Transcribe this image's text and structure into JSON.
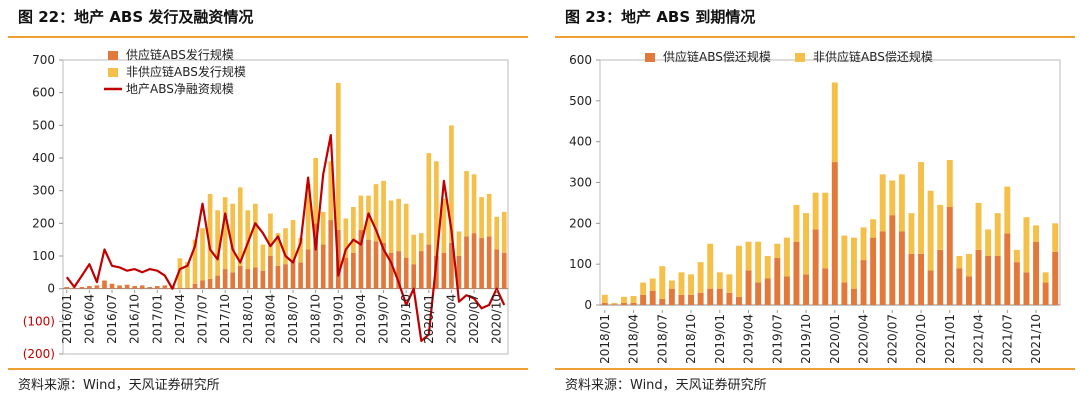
{
  "left": {
    "title": "图 22：地产 ABS 发行及融资情况",
    "source": "资料来源：Wind，天风证券研究所"
  },
  "right": {
    "title": "图 23：地产 ABS 到期情况",
    "source": "资料来源：Wind，天风证券研究所"
  },
  "colors": {
    "supply_chain": "#e2793a",
    "non_supply_chain": "#f5c04a",
    "net_financing": "#c00000",
    "negative_tick": "#c00000",
    "rule": "#f0a030"
  },
  "chart_data": [
    {
      "type": "bar",
      "stacked": true,
      "title": "",
      "x": [
        "2016/01",
        "2016/02",
        "2016/03",
        "2016/04",
        "2016/05",
        "2016/06",
        "2016/07",
        "2016/08",
        "2016/09",
        "2016/10",
        "2016/11",
        "2016/12",
        "2017/01",
        "2017/02",
        "2017/03",
        "2017/04",
        "2017/05",
        "2017/06",
        "2017/07",
        "2017/08",
        "2017/09",
        "2017/10",
        "2017/11",
        "2017/12",
        "2018/01",
        "2018/02",
        "2018/03",
        "2018/04",
        "2018/05",
        "2018/06",
        "2018/07",
        "2018/08",
        "2018/09",
        "2018/10",
        "2018/11",
        "2018/12",
        "2019/01",
        "2019/02",
        "2019/03",
        "2019/04",
        "2019/05",
        "2019/06",
        "2019/07",
        "2019/08",
        "2019/09",
        "2019/10",
        "2019/11",
        "2019/12",
        "2020/01",
        "2020/02",
        "2020/03",
        "2020/04",
        "2020/05",
        "2020/06",
        "2020/07",
        "2020/08",
        "2020/09",
        "2020/10",
        "2020/11"
      ],
      "x_tick_labels": [
        "2016/01",
        "2016/04",
        "2016/07",
        "2016/10",
        "2017/01",
        "2017/04",
        "2017/07",
        "2017/10",
        "2018/01",
        "2018/04",
        "2018/07",
        "2018/10",
        "2019/01",
        "2019/04",
        "2019/07",
        "2019/10",
        "2020/01",
        "2020/04",
        "2020/07",
        "2020/10"
      ],
      "y_ticks": [
        -200,
        -100,
        0,
        100,
        200,
        300,
        400,
        500,
        600,
        700
      ],
      "y_tick_labels": [
        "(200)",
        "(100)",
        "0",
        "100",
        "200",
        "300",
        "400",
        "500",
        "600",
        "700"
      ],
      "ylim": [
        -200,
        700
      ],
      "legend_position": "top-left",
      "series": [
        {
          "name": "供应链ABS发行规模",
          "kind": "bar",
          "values": [
            5,
            3,
            5,
            8,
            10,
            25,
            15,
            10,
            12,
            8,
            10,
            5,
            8,
            10,
            5,
            3,
            2,
            15,
            25,
            30,
            40,
            60,
            50,
            70,
            60,
            65,
            55,
            100,
            70,
            75,
            85,
            80,
            120,
            200,
            135,
            210,
            180,
            95,
            110,
            180,
            150,
            145,
            140,
            110,
            115,
            95,
            75,
            115,
            135,
            100,
            110,
            140,
            100,
            160,
            170,
            155,
            160,
            120,
            110
          ]
        },
        {
          "name": "非供应链ABS发行规模",
          "kind": "bar",
          "values": [
            0,
            0,
            0,
            0,
            0,
            0,
            0,
            0,
            0,
            0,
            0,
            0,
            0,
            0,
            0,
            90,
            80,
            135,
            160,
            260,
            200,
            220,
            210,
            240,
            180,
            195,
            80,
            130,
            100,
            110,
            125,
            75,
            200,
            200,
            100,
            180,
            450,
            120,
            140,
            105,
            135,
            175,
            190,
            160,
            160,
            165,
            90,
            55,
            280,
            290,
            165,
            360,
            75,
            200,
            180,
            125,
            130,
            100,
            125
          ]
        },
        {
          "name": "地产ABS净融资规模",
          "kind": "line",
          "values": [
            35,
            5,
            40,
            75,
            20,
            120,
            70,
            65,
            55,
            60,
            50,
            60,
            55,
            40,
            0,
            60,
            70,
            130,
            260,
            120,
            90,
            230,
            120,
            80,
            140,
            200,
            170,
            130,
            160,
            100,
            80,
            140,
            340,
            120,
            350,
            470,
            40,
            120,
            150,
            135,
            230,
            180,
            120,
            80,
            20,
            -50,
            0,
            -160,
            -140,
            80,
            330,
            180,
            -40,
            -20,
            -30,
            -60,
            -50,
            0,
            -50
          ]
        }
      ]
    },
    {
      "type": "bar",
      "stacked": true,
      "title": "",
      "x": [
        "2018/01",
        "2018/02",
        "2018/03",
        "2018/04",
        "2018/05",
        "2018/06",
        "2018/07",
        "2018/08",
        "2018/09",
        "2018/10",
        "2018/11",
        "2018/12",
        "2019/01",
        "2019/02",
        "2019/03",
        "2019/04",
        "2019/05",
        "2019/06",
        "2019/07",
        "2019/08",
        "2019/09",
        "2019/10",
        "2019/11",
        "2019/12",
        "2020/01",
        "2020/02",
        "2020/03",
        "2020/04",
        "2020/05",
        "2020/06",
        "2020/07",
        "2020/08",
        "2020/09",
        "2020/10",
        "2020/11",
        "2020/12",
        "2021/01",
        "2021/02",
        "2021/03",
        "2021/04",
        "2021/05",
        "2021/06",
        "2021/07",
        "2021/08",
        "2021/09",
        "2021/10",
        "2021/11",
        "2021/12"
      ],
      "x_tick_labels": [
        "2018/01",
        "2018/04",
        "2018/07",
        "2018/10",
        "2019/01",
        "2019/04",
        "2019/07",
        "2019/10",
        "2020/01",
        "2020/04",
        "2020/07",
        "2020/10",
        "2021/01",
        "2021/04",
        "2021/07",
        "2021/10"
      ],
      "y_ticks": [
        0,
        100,
        200,
        300,
        400,
        500,
        600
      ],
      "y_tick_labels": [
        "0",
        "100",
        "200",
        "300",
        "400",
        "500",
        "600"
      ],
      "ylim": [
        0,
        600
      ],
      "legend_position": "top-left",
      "series": [
        {
          "name": "供应链ABS偿还规模",
          "kind": "bar",
          "values": [
            5,
            2,
            5,
            5,
            25,
            35,
            15,
            40,
            25,
            25,
            30,
            40,
            40,
            30,
            20,
            85,
            55,
            65,
            115,
            70,
            155,
            75,
            185,
            90,
            350,
            55,
            40,
            110,
            165,
            180,
            220,
            180,
            125,
            125,
            85,
            135,
            240,
            90,
            70,
            135,
            120,
            120,
            175,
            105,
            80,
            155,
            55,
            130
          ]
        },
        {
          "name": "非供应链ABS偿还规模",
          "kind": "bar",
          "values": [
            20,
            3,
            15,
            17,
            30,
            30,
            80,
            20,
            55,
            50,
            75,
            110,
            40,
            45,
            125,
            70,
            100,
            55,
            35,
            95,
            90,
            150,
            90,
            185,
            195,
            115,
            125,
            80,
            45,
            140,
            85,
            140,
            100,
            225,
            195,
            110,
            115,
            30,
            55,
            115,
            65,
            105,
            115,
            30,
            135,
            40,
            25,
            70
          ]
        }
      ]
    }
  ]
}
